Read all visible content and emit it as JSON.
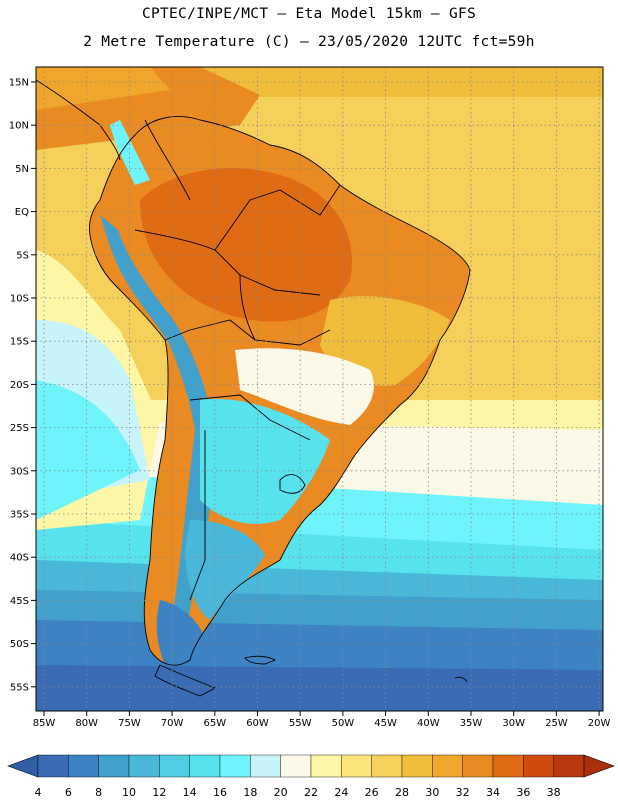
{
  "header": {
    "line1": "CPTEC/INPE/MCT –  Eta Model 15km – GFS",
    "line2": "2 Metre Temperature (C) – 23/05/2020 12UTC fct=59h"
  },
  "map": {
    "lat_labels": [
      "15N",
      "10N",
      "5N",
      "EQ",
      "5S",
      "10S",
      "15S",
      "20S",
      "25S",
      "30S",
      "35S",
      "40S",
      "45S",
      "50S",
      "55S"
    ],
    "lon_labels": [
      "85W",
      "80W",
      "75W",
      "70W",
      "65W",
      "60W",
      "55W",
      "50W",
      "45W",
      "40W",
      "35W",
      "30W",
      "25W",
      "20W"
    ]
  },
  "colorbar": {
    "labels": [
      "4",
      "6",
      "8",
      "10",
      "12",
      "14",
      "16",
      "18",
      "20",
      "22",
      "24",
      "26",
      "28",
      "30",
      "32",
      "34",
      "36",
      "38"
    ],
    "colors": [
      "#3a6bb4",
      "#3d82c2",
      "#41a0cc",
      "#48b7d8",
      "#50cde3",
      "#58e2ec",
      "#6ff4fb",
      "#c7f3fb",
      "#fdf9e8",
      "#fdf6a6",
      "#fde57a",
      "#f5d05a",
      "#efbc3c",
      "#f0a52d",
      "#e98a22",
      "#df6b14",
      "#d04a0c",
      "#b8370c"
    ],
    "low_color": "#2f5ea6",
    "high_color": "#a92f0c"
  }
}
